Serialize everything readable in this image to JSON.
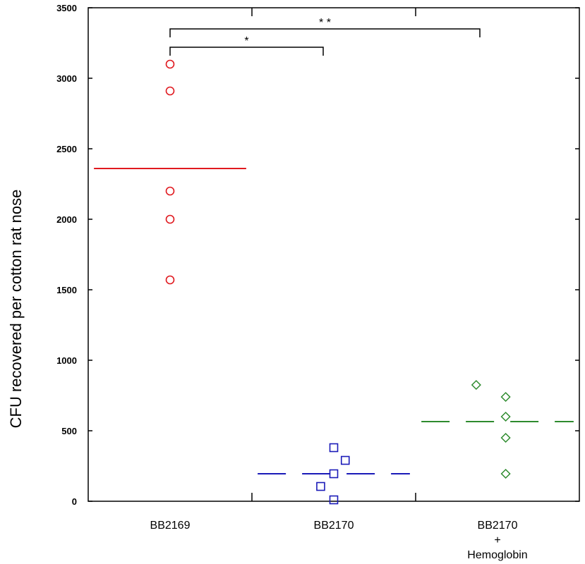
{
  "chart_data": {
    "type": "scatter",
    "title": "",
    "ylabel": "CFU recovered per cotton rat nose",
    "xlabel": "",
    "ylim": [
      0,
      3500
    ],
    "yticks": [
      0,
      500,
      1000,
      1500,
      2000,
      2500,
      3000,
      3500
    ],
    "grid": false,
    "categories": [
      {
        "label": "BB2169",
        "label_lines": [
          "BB2169"
        ]
      },
      {
        "label": "BB2170",
        "label_lines": [
          "BB2170"
        ]
      },
      {
        "label": "BB2170 + Hemoglobin",
        "label_lines": [
          "BB2170",
          "+",
          "Hemoglobin"
        ]
      }
    ],
    "series": [
      {
        "category": "BB2169",
        "marker": "circle",
        "color": "#e0191f",
        "mean": 2360,
        "mean_line": "solid",
        "points": [
          {
            "x": 0.0,
            "y": 3100
          },
          {
            "x": 0.0,
            "y": 2910
          },
          {
            "x": 0.0,
            "y": 2200
          },
          {
            "x": 0.0,
            "y": 2000
          },
          {
            "x": 0.0,
            "y": 1570
          }
        ]
      },
      {
        "category": "BB2170",
        "marker": "square",
        "color": "#1a1ab8",
        "mean": 195,
        "mean_line": "dashed",
        "points": [
          {
            "x": 0.0,
            "y": 380
          },
          {
            "x": 0.07,
            "y": 290
          },
          {
            "x": 0.0,
            "y": 195
          },
          {
            "x": -0.08,
            "y": 105
          },
          {
            "x": 0.0,
            "y": 10
          }
        ]
      },
      {
        "category": "BB2170 + Hemoglobin",
        "marker": "diamond",
        "color": "#2e8b2e",
        "mean": 565,
        "mean_line": "dashed",
        "points": [
          {
            "x": -0.13,
            "y": 825
          },
          {
            "x": 0.05,
            "y": 740
          },
          {
            "x": 0.05,
            "y": 600
          },
          {
            "x": 0.05,
            "y": 450
          },
          {
            "x": 0.05,
            "y": 195
          }
        ]
      }
    ],
    "annotations": [
      {
        "from": "BB2169",
        "to": "BB2170",
        "text": "*",
        "level": 3220
      },
      {
        "from": "BB2169",
        "to": "BB2170 + Hemoglobin",
        "text": "* *",
        "level": 3350
      }
    ]
  }
}
